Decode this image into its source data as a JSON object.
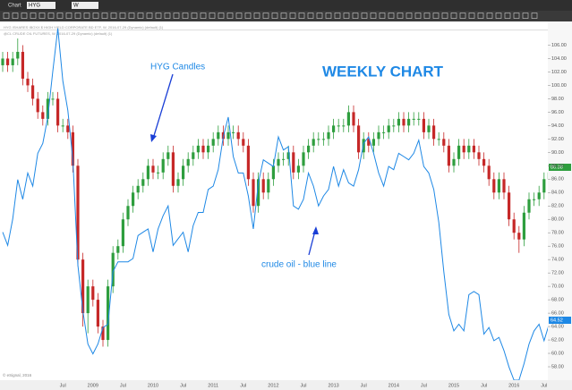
{
  "toolbar": {
    "window_title": "Chart",
    "interval": "W"
  },
  "legend_lines": [
    "HYG ISHARES IBOXX $ HIGH YIELD CORPORATE BD ETF, W, 2016-07-29 (Dynamic) (default) (1)",
    "@CL CRUDE OIL FUTURES, W, 2016-07-29 (Dynamic) (default) (1)"
  ],
  "copyright": "© eSignal, 2016",
  "price_badges": [
    "86.38",
    "64.52"
  ],
  "chart_data": {
    "type": "candlestick",
    "title": "WEEKLY CHART",
    "annotations": [
      "HYG Candles",
      "crude oil - blue line"
    ],
    "categories": [
      null,
      null,
      null,
      null,
      null,
      null,
      null,
      null,
      null,
      null,
      null,
      null,
      "Jul",
      null,
      null,
      null,
      null,
      null,
      "2009",
      null,
      null,
      null,
      null,
      null,
      "Jul",
      null,
      null,
      null,
      null,
      null,
      "2010",
      null,
      null,
      null,
      null,
      null,
      "Jul",
      null,
      null,
      null,
      null,
      null,
      "2011",
      null,
      null,
      null,
      null,
      null,
      "Jul",
      null,
      null,
      null,
      null,
      null,
      "2012",
      null,
      null,
      null,
      null,
      null,
      "Jul",
      null,
      null,
      null,
      null,
      null,
      "2013",
      null,
      null,
      null,
      null,
      null,
      "Jul",
      null,
      null,
      null,
      null,
      null,
      "2014",
      null,
      null,
      null,
      null,
      null,
      "Jul",
      null,
      null,
      null,
      null,
      null,
      "2015",
      null,
      null,
      null,
      null,
      null,
      "Jul",
      null,
      null,
      null,
      null,
      null,
      "2016",
      null,
      null,
      null,
      null,
      null,
      "Jul",
      null
    ],
    "series": [
      {
        "name": "HYG",
        "up_color": "#2e9e3e",
        "down_color": "#c62828",
        "open": [
          103,
          104,
          103,
          104,
          105,
          101,
          100,
          98,
          96,
          95,
          98,
          98,
          94,
          94,
          93,
          88,
          74,
          66,
          70,
          68,
          64,
          62,
          70,
          75,
          76,
          80,
          82,
          84,
          85,
          86,
          88,
          87,
          87,
          89,
          90,
          85,
          86,
          88,
          89,
          90,
          91,
          90,
          91,
          92,
          93,
          92,
          93,
          93,
          92,
          91,
          86,
          82,
          86,
          84,
          86,
          88,
          89,
          89,
          90,
          87,
          88,
          90,
          91,
          92,
          92,
          92,
          93,
          94,
          94,
          94,
          96,
          94,
          90,
          92,
          91,
          92,
          93,
          93,
          94,
          94,
          95,
          94,
          95,
          95,
          95,
          93,
          94,
          92,
          92,
          91,
          88,
          89,
          91,
          90,
          91,
          90,
          89,
          88,
          86,
          84,
          86,
          84,
          80,
          78,
          77,
          81,
          83,
          83,
          84,
          86
        ],
        "high": [
          105,
          105,
          105,
          107,
          106,
          102,
          101,
          99,
          97,
          99,
          99,
          99,
          95,
          95,
          94,
          89,
          75,
          71,
          71,
          69,
          65,
          71,
          76,
          77,
          81,
          83,
          85,
          86,
          87,
          89,
          89,
          88,
          90,
          91,
          91,
          87,
          89,
          90,
          91,
          92,
          92,
          92,
          93,
          94,
          94,
          94,
          94,
          94,
          93,
          92,
          87,
          87,
          87,
          87,
          89,
          90,
          90,
          91,
          91,
          89,
          91,
          92,
          93,
          93,
          93,
          94,
          95,
          95,
          95,
          97,
          97,
          95,
          93,
          93,
          93,
          94,
          94,
          95,
          95,
          96,
          96,
          96,
          96,
          96,
          96,
          95,
          95,
          93,
          93,
          92,
          90,
          92,
          92,
          92,
          92,
          91,
          90,
          89,
          87,
          87,
          87,
          85,
          81,
          79,
          82,
          84,
          84,
          85,
          87,
          88
        ],
        "low": [
          102,
          102,
          102,
          103,
          100,
          99,
          97,
          95,
          94,
          94,
          97,
          93,
          93,
          92,
          87,
          73,
          64,
          63,
          67,
          63,
          61,
          61,
          69,
          74,
          75,
          79,
          81,
          83,
          84,
          85,
          86,
          86,
          86,
          88,
          84,
          84,
          85,
          87,
          88,
          89,
          89,
          89,
          90,
          91,
          91,
          91,
          92,
          91,
          90,
          85,
          81,
          81,
          83,
          83,
          85,
          87,
          88,
          88,
          86,
          86,
          87,
          89,
          90,
          91,
          91,
          91,
          92,
          93,
          93,
          93,
          93,
          89,
          89,
          90,
          90,
          91,
          92,
          92,
          93,
          93,
          93,
          93,
          94,
          94,
          92,
          92,
          91,
          91,
          90,
          87,
          87,
          88,
          89,
          89,
          89,
          88,
          87,
          85,
          83,
          83,
          83,
          79,
          77,
          75,
          76,
          80,
          82,
          82,
          83,
          85
        ],
        "close": [
          104,
          103,
          104,
          105,
          101,
          100,
          98,
          96,
          95,
          98,
          98,
          94,
          94,
          93,
          88,
          74,
          66,
          70,
          68,
          64,
          62,
          70,
          75,
          76,
          80,
          82,
          84,
          85,
          86,
          88,
          87,
          87,
          89,
          90,
          85,
          86,
          88,
          89,
          90,
          91,
          90,
          91,
          92,
          93,
          92,
          93,
          93,
          92,
          91,
          86,
          82,
          86,
          84,
          86,
          88,
          89,
          89,
          90,
          87,
          88,
          90,
          91,
          92,
          92,
          92,
          93,
          94,
          94,
          94,
          96,
          94,
          90,
          92,
          91,
          92,
          93,
          93,
          94,
          94,
          95,
          94,
          95,
          95,
          95,
          93,
          94,
          92,
          92,
          91,
          88,
          89,
          91,
          90,
          91,
          90,
          89,
          88,
          86,
          84,
          86,
          84,
          80,
          78,
          77,
          81,
          83,
          83,
          84,
          86,
          87
        ]
      },
      {
        "color": "#1e88e5",
        "axis": "y2",
        "values": [
          78,
          74,
          82,
          94,
          88,
          96,
          92,
          102,
          105,
          113,
          127,
          140,
          124,
          115,
          100,
          68,
          54,
          44,
          41,
          44,
          49,
          50,
          66,
          69,
          69,
          69,
          70,
          77,
          78,
          79,
          72,
          79,
          83,
          86,
          74,
          76,
          78,
          72,
          80,
          84,
          84,
          91,
          92,
          97,
          107,
          113,
          101,
          96,
          96,
          89,
          79,
          93,
          100,
          99,
          98,
          107,
          103,
          104,
          86,
          85,
          88,
          96,
          92,
          86,
          89,
          91,
          98,
          92,
          97,
          93,
          92,
          97,
          105,
          107,
          102,
          96,
          92,
          98,
          97,
          102,
          101,
          100,
          102,
          106,
          98,
          96,
          91,
          81,
          66,
          53,
          48,
          50,
          48,
          59,
          60,
          59,
          47,
          49,
          45,
          46,
          42,
          37,
          33,
          33,
          38,
          44,
          48,
          50,
          45,
          50
        ]
      }
    ],
    "ylim": [
      56,
      109
    ],
    "y2lim": [
      33,
      141
    ],
    "yticks": [
      {
        "value": 58,
        "label": "58.00"
      },
      {
        "value": 60,
        "label": "60.00"
      },
      {
        "value": 62,
        "label": "62.00"
      },
      {
        "value": 64,
        "label": "64.00"
      },
      {
        "value": 66,
        "label": "66.00"
      },
      {
        "value": 68,
        "label": "68.00"
      },
      {
        "value": 70,
        "label": "70.00"
      },
      {
        "value": 72,
        "label": "72.00"
      },
      {
        "value": 74,
        "label": "74.00"
      },
      {
        "value": 76,
        "label": "76.00"
      },
      {
        "value": 78,
        "label": "78.00"
      },
      {
        "value": 80,
        "label": "80.00"
      },
      {
        "value": 82,
        "label": "82.00"
      },
      {
        "value": 84,
        "label": "84.00"
      },
      {
        "value": 86,
        "label": "86.00"
      },
      {
        "value": 88,
        "label": "88.00"
      },
      {
        "value": 90,
        "label": "90.00"
      },
      {
        "value": 92,
        "label": "92.00"
      },
      {
        "value": 94,
        "label": "94.00"
      },
      {
        "value": 96,
        "label": "96.00"
      },
      {
        "value": 98,
        "label": "98.00"
      },
      {
        "value": 100,
        "label": "100.00"
      },
      {
        "value": 102,
        "label": "102.00"
      },
      {
        "value": 104,
        "label": "104.00"
      },
      {
        "value": 106,
        "label": "106.00"
      }
    ],
    "grid": false
  }
}
